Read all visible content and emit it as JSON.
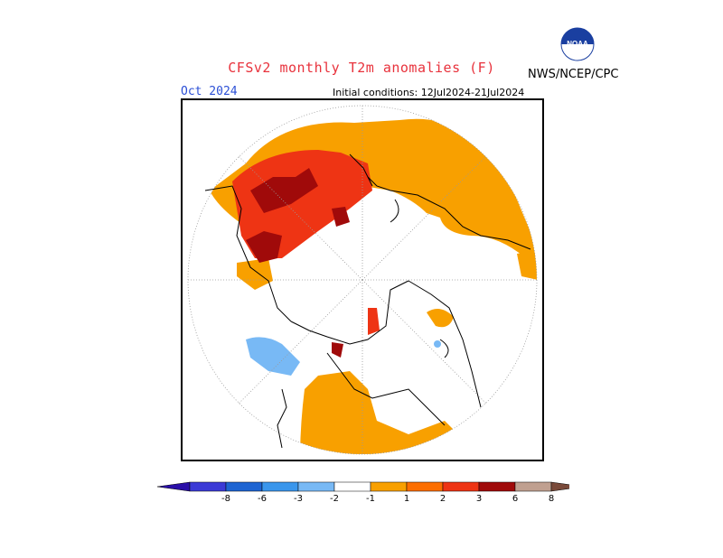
{
  "chart_data": {
    "type": "heatmap",
    "title": "CFSv2 monthly T2m anomalies (F)",
    "subtitle_left": "Oct 2024",
    "subtitle_right": "Initial conditions: 12Jul2024-21Jul2024",
    "projection": "north polar stereographic",
    "grid": true,
    "colorbar": {
      "tick_labels": [
        "-8",
        "-6",
        "-3",
        "-2",
        "-1",
        "1",
        "2",
        "3",
        "6",
        "8"
      ],
      "bins": [
        {
          "range": "< -8",
          "color": "#2a0fa8"
        },
        {
          "range": "-8 to -6",
          "color": "#3b3ad6"
        },
        {
          "range": "-6 to -3",
          "color": "#1e64d2"
        },
        {
          "range": "-3 to -2",
          "color": "#3a96ec"
        },
        {
          "range": "-2 to -1",
          "color": "#78b9f5"
        },
        {
          "range": "-1 to 1",
          "color": "#ffffff"
        },
        {
          "range": "1 to 2",
          "color": "#f8a000"
        },
        {
          "range": "2 to 3",
          "color": "#fc6e00"
        },
        {
          "range": "3 to 6",
          "color": "#ee3414"
        },
        {
          "range": "6 to 8",
          "color": "#a00a0a"
        },
        {
          "range": "8 to 10",
          "color": "#c0a090"
        },
        {
          "range": "> 10",
          "color": "#7a4a3a"
        }
      ]
    }
  },
  "header": {
    "org": "NWS/NCEP/CPC",
    "logo_text": "NOAA"
  }
}
